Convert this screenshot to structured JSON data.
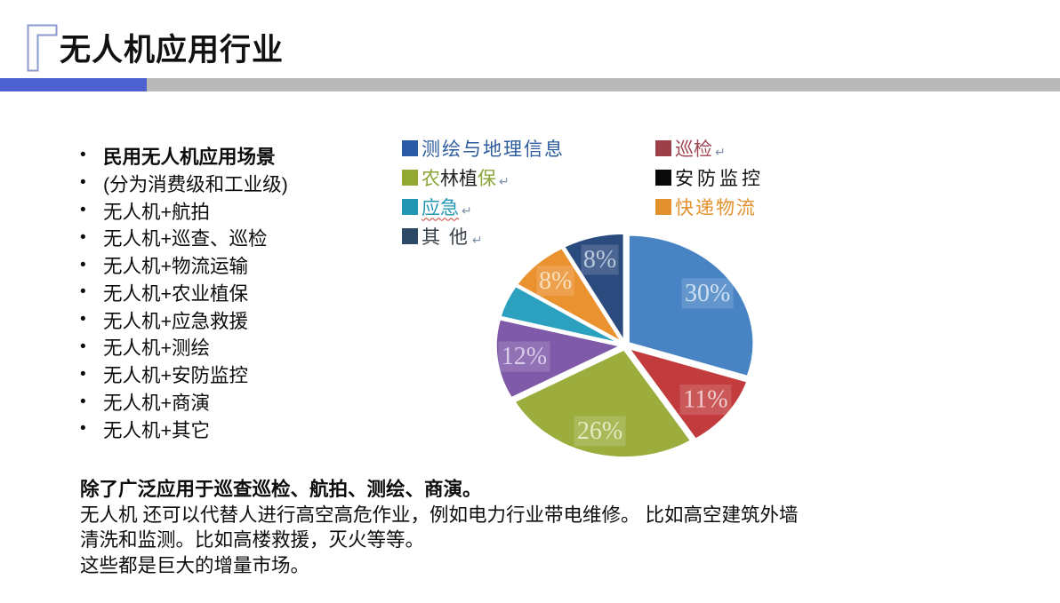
{
  "slide": {
    "title": "无人机应用行业",
    "return_mark": "↵"
  },
  "colors": {
    "accent_bar_blue": "#4e61d0",
    "accent_bar_gray": "#b9b9b9",
    "title_icon_outline": "#8b9ad0"
  },
  "bullets": {
    "items": [
      {
        "text": "民用无人机应用场景",
        "bold": true
      },
      {
        "text": "(分为消费级和工业级)",
        "bold": false
      },
      {
        "text": "无人机+航拍",
        "bold": false
      },
      {
        "text": "无人机+巡查、巡检",
        "bold": false
      },
      {
        "text": "无人机+物流运输",
        "bold": false
      },
      {
        "text": "无人机+农业植保",
        "bold": false
      },
      {
        "text": "无人机+应急救援",
        "bold": false
      },
      {
        "text": "无人机+测绘",
        "bold": false
      },
      {
        "text": "无人机+安防监控",
        "bold": false
      },
      {
        "text": "无人机+商演",
        "bold": false
      },
      {
        "text": "无人机+其它",
        "bold": false
      }
    ]
  },
  "legend": {
    "left": [
      {
        "name": "测绘与地理信息",
        "swatch": "#2b5ba6",
        "text_color": "#2d5c9e"
      },
      {
        "name": "农林植保",
        "swatch": "#93a832",
        "segments": [
          {
            "text": "农",
            "color": "#8aa637"
          },
          {
            "text": "林植",
            "color": "#222222"
          },
          {
            "text": "保",
            "color": "#8aa637"
          }
        ],
        "has_return": true
      },
      {
        "name": "应急",
        "swatch": "#2396b4",
        "text_color": "#2396b4",
        "has_return": true,
        "squiggle_color": "#d23b2f"
      },
      {
        "name": "其 他",
        "swatch": "#2c4a66",
        "text_color": "#37404a",
        "has_return": true
      }
    ],
    "right": [
      {
        "name": "巡检",
        "swatch": "#9c4049",
        "text_color": "#a04552",
        "has_return": true
      },
      {
        "name": "安防监控",
        "swatch": "#0a0a0a",
        "text_color": "#111111"
      },
      {
        "name": "快递物流",
        "swatch": "#e2912e",
        "text_color": "#e2912e"
      }
    ]
  },
  "chart_data": {
    "type": "pie",
    "categories": [
      "测绘与地理信息",
      "巡检",
      "农林植保",
      "安防监控",
      "应急",
      "快递物流",
      "其他"
    ],
    "values": [
      30,
      11,
      26,
      12,
      5,
      8,
      8
    ],
    "labels_shown": [
      "30%",
      "11%",
      "26%",
      "12%",
      "",
      "8%",
      "8%"
    ],
    "colors": [
      "#4884c4",
      "#c23b3d",
      "#9cad3d",
      "#7e5aa8",
      "#2ba0bf",
      "#ea9130",
      "#2b4b7e"
    ],
    "label_colors": [
      "#cfe0f2",
      "#f0cdce",
      "#e3ebc2",
      "#d9cdeb",
      "",
      "#f9e0bd",
      "#b9c8dd"
    ],
    "start_angle_deg": 0,
    "direction": "clockwise",
    "legend_position": "top",
    "exploded": true
  },
  "footer": {
    "lines": [
      {
        "text": "除了广泛应用于巡查巡检、航拍、测绘、商演。",
        "bold": true
      },
      {
        "text": "无人机 还可以代替人进行高空高危作业，例如电力行业带电维修。 比如高空建筑外墙",
        "bold": false
      },
      {
        "text": "清洗和监测。比如高楼救援，灭火等等。",
        "bold": false
      },
      {
        "text": "这些都是巨大的增量市场。",
        "bold": false
      }
    ]
  }
}
